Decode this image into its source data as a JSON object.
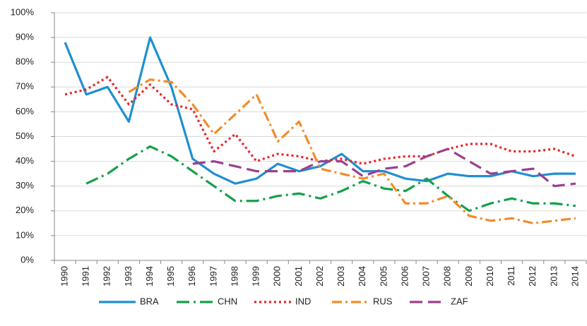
{
  "chart_data": {
    "type": "line",
    "categories": [
      "1990",
      "1991",
      "1992",
      "1993",
      "1994",
      "1995",
      "1996",
      "1997",
      "1998",
      "1999",
      "2000",
      "2001",
      "2002",
      "2003",
      "2004",
      "2005",
      "2006",
      "2007",
      "2008",
      "2009",
      "2010",
      "2011",
      "2012",
      "2013",
      "2014"
    ],
    "series": [
      {
        "name": "BRA",
        "color": "#1f8fd0",
        "dash": "solid",
        "values": [
          88,
          67,
          70,
          56,
          90,
          70,
          41,
          35,
          31,
          33,
          39,
          36,
          38,
          43,
          36,
          36,
          33,
          32,
          35,
          34,
          34,
          36,
          34,
          35,
          35
        ]
      },
      {
        "name": "CHN",
        "color": "#13a04c",
        "dash": "long-dash-dot",
        "values": [
          null,
          31,
          35,
          41,
          46,
          42,
          36,
          30,
          24,
          24,
          26,
          27,
          25,
          28,
          32,
          29,
          28,
          33,
          26,
          20,
          23,
          25,
          23,
          23,
          22
        ]
      },
      {
        "name": "IND",
        "color": "#e8242b",
        "dash": "dot",
        "values": [
          67,
          69,
          74,
          63,
          71,
          63,
          61,
          44,
          51,
          40,
          43,
          42,
          40,
          41,
          39,
          41,
          42,
          42,
          45,
          47,
          47,
          44,
          44,
          45,
          42
        ]
      },
      {
        "name": "RUS",
        "color": "#f28c2a",
        "dash": "dash-dot",
        "values": [
          null,
          null,
          null,
          68,
          73,
          72,
          63,
          51,
          59,
          67,
          48,
          56,
          37,
          35,
          33,
          35,
          23,
          23,
          26,
          18,
          16,
          17,
          15,
          16,
          17
        ]
      },
      {
        "name": "ZAF",
        "color": "#9c3f8e",
        "dash": "long-dash",
        "values": [
          null,
          null,
          null,
          null,
          null,
          null,
          39,
          40,
          38,
          36,
          36,
          36,
          40,
          40,
          34,
          37,
          38,
          42,
          45,
          40,
          35,
          36,
          37,
          30,
          31
        ]
      }
    ],
    "ylim": [
      0,
      100
    ],
    "yticks": [
      {
        "value": 0,
        "label": "0%"
      },
      {
        "value": 10,
        "label": "10%"
      },
      {
        "value": 20,
        "label": "20%"
      },
      {
        "value": 30,
        "label": "30%"
      },
      {
        "value": 40,
        "label": "40%"
      },
      {
        "value": 50,
        "label": "50%"
      },
      {
        "value": 60,
        "label": "60%"
      },
      {
        "value": 70,
        "label": "70%"
      },
      {
        "value": 80,
        "label": "80%"
      },
      {
        "value": 90,
        "label": "90%"
      },
      {
        "value": 100,
        "label": "100%"
      }
    ],
    "grid": true,
    "legend": "bottom"
  }
}
